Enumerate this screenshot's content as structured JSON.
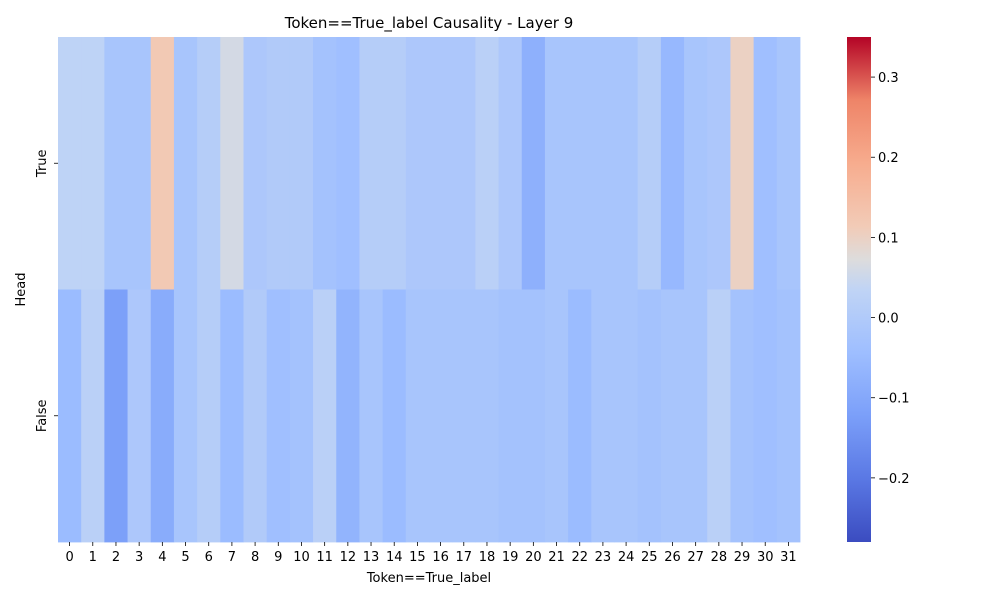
{
  "chart_data": {
    "type": "heatmap",
    "title": "Token==True_label Causality - Layer 9",
    "xlabel": "Token==True_label",
    "ylabel": "Head",
    "x_categories": [
      "0",
      "1",
      "2",
      "3",
      "4",
      "5",
      "6",
      "7",
      "8",
      "9",
      "10",
      "11",
      "12",
      "13",
      "14",
      "15",
      "16",
      "17",
      "18",
      "19",
      "20",
      "21",
      "22",
      "23",
      "24",
      "25",
      "26",
      "27",
      "28",
      "29",
      "30",
      "31"
    ],
    "y_categories": [
      "True",
      "False"
    ],
    "values": [
      [
        0.03,
        0.03,
        -0.02,
        -0.02,
        0.12,
        -0.02,
        0.01,
        0.06,
        -0.01,
        0.0,
        0.0,
        -0.03,
        -0.04,
        0.01,
        0.01,
        -0.01,
        -0.01,
        -0.01,
        0.02,
        -0.01,
        -0.08,
        -0.02,
        -0.02,
        -0.02,
        -0.02,
        0.01,
        -0.06,
        -0.02,
        -0.01,
        0.1,
        -0.04,
        -0.02
      ],
      [
        -0.05,
        0.02,
        -0.12,
        -0.01,
        -0.09,
        -0.02,
        0.01,
        -0.05,
        0.0,
        -0.04,
        -0.03,
        0.02,
        -0.07,
        -0.02,
        -0.05,
        -0.02,
        -0.02,
        -0.02,
        -0.02,
        -0.03,
        -0.03,
        -0.02,
        -0.05,
        -0.02,
        -0.02,
        -0.03,
        -0.02,
        -0.02,
        0.02,
        -0.03,
        -0.04,
        -0.03
      ]
    ],
    "colormap": "coolwarm",
    "vmin": -0.28,
    "vmax": 0.35,
    "colorbar_ticks": [
      0.3,
      0.2,
      0.1,
      0.0,
      -0.1,
      -0.2
    ],
    "colorbar_tick_labels": [
      "0.3",
      "0.2",
      "0.1",
      "0.0",
      "−0.1",
      "−0.2"
    ]
  }
}
